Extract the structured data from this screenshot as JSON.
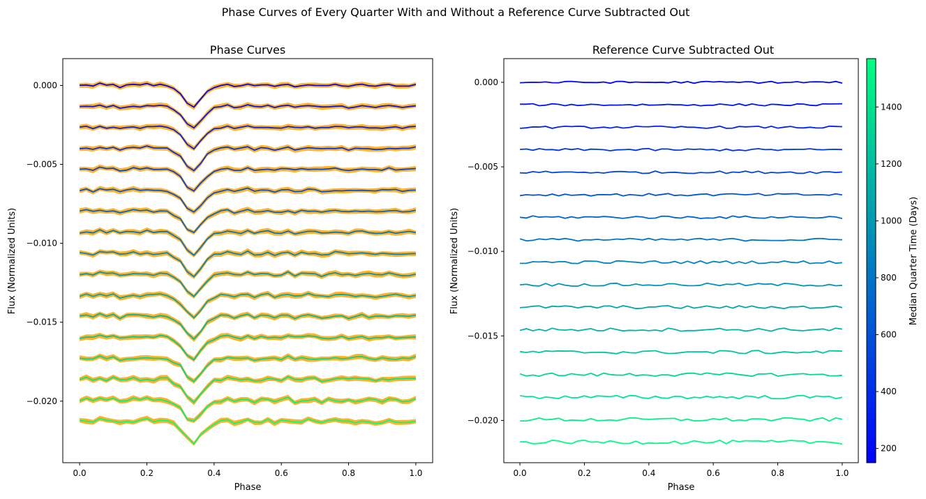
{
  "figure": {
    "suptitle": "Phase Curves of Every Quarter With and Without a Reference Curve Subtracted Out"
  },
  "colorbar": {
    "label": "Median Quarter Time (Days)",
    "range": [
      150,
      1570
    ],
    "ticks": [
      200,
      400,
      600,
      800,
      1000,
      1200,
      1400
    ],
    "colormap": [
      "#0000ff",
      "#00ff80"
    ]
  },
  "colors": {
    "envelope": "#ffa500"
  },
  "chart_data": [
    {
      "type": "line",
      "title": "Phase Curves",
      "xlabel": "Phase",
      "ylabel": "Flux (Normalized Units)",
      "xlim": [
        -0.05,
        1.05
      ],
      "ylim": [
        -0.0239,
        0.0017
      ],
      "xticks": [
        0.0,
        0.2,
        0.4,
        0.6,
        0.8,
        1.0
      ],
      "xtick_labels": [
        "0.0",
        "0.2",
        "0.4",
        "0.6",
        "0.8",
        "1.0"
      ],
      "yticks": [
        0.0,
        -0.005,
        -0.01,
        -0.015,
        -0.02
      ],
      "ytick_labels": [
        "0.000",
        "−0.005",
        "−0.010",
        "−0.015",
        "−0.020"
      ],
      "phase": [
        0.0,
        0.02,
        0.04,
        0.06,
        0.08,
        0.1,
        0.12,
        0.14,
        0.16,
        0.18,
        0.2,
        0.22,
        0.24,
        0.26,
        0.28,
        0.3,
        0.32,
        0.34,
        0.36,
        0.38,
        0.4,
        0.42,
        0.44,
        0.46,
        0.48,
        0.5,
        0.52,
        0.54,
        0.56,
        0.58,
        0.6,
        0.62,
        0.64,
        0.66,
        0.68,
        0.7,
        0.72,
        0.74,
        0.76,
        0.78,
        0.8,
        0.82,
        0.84,
        0.86,
        0.88,
        0.9,
        0.92,
        0.94,
        0.96,
        0.98,
        1.0
      ],
      "reference_shape": [
        0.0,
        5e-05,
        -5e-05,
        0.0001,
        0.0,
        5e-05,
        -0.0001,
        0.0,
        5e-05,
        0.0,
        0.0001,
        0.0,
        5e-05,
        0.0,
        -0.0002,
        -0.0005,
        -0.0011,
        -0.0014,
        -0.0009,
        -0.0004,
        -0.0001,
        0.0,
        5e-05,
        -5e-05,
        0.0,
        0.0001,
        -5e-05,
        0.0,
        5e-05,
        -5e-05,
        0.0,
        0.0001,
        -5e-05,
        0.0,
        5e-05,
        0.0,
        -5e-05,
        0.0,
        5e-05,
        0.0,
        -5e-05,
        0.0,
        5e-05,
        0.0,
        -5e-05,
        0.0,
        5e-05,
        0.0,
        -5e-05,
        0.0,
        5e-05
      ],
      "series": [
        {
          "median_time": 170,
          "offset": 0.0
        },
        {
          "median_time": 260,
          "offset": -0.00133
        },
        {
          "median_time": 350,
          "offset": -0.00266
        },
        {
          "median_time": 440,
          "offset": -0.00399
        },
        {
          "median_time": 530,
          "offset": -0.00532
        },
        {
          "median_time": 620,
          "offset": -0.00665
        },
        {
          "median_time": 710,
          "offset": -0.00798
        },
        {
          "median_time": 800,
          "offset": -0.00931
        },
        {
          "median_time": 890,
          "offset": -0.01064
        },
        {
          "median_time": 980,
          "offset": -0.01197
        },
        {
          "median_time": 1070,
          "offset": -0.0133
        },
        {
          "median_time": 1160,
          "offset": -0.01463
        },
        {
          "median_time": 1250,
          "offset": -0.01596
        },
        {
          "median_time": 1340,
          "offset": -0.01729
        },
        {
          "median_time": 1430,
          "offset": -0.01862
        },
        {
          "median_time": 1500,
          "offset": -0.01995
        },
        {
          "median_time": 1560,
          "offset": -0.02128
        }
      ]
    },
    {
      "type": "line",
      "title": "Reference Curve Subtracted Out",
      "xlabel": "Phase",
      "ylabel": "Flux (Normalized Units)",
      "xlim": [
        -0.05,
        1.05
      ],
      "ylim": [
        -0.0225,
        0.0014
      ],
      "xticks": [
        0.0,
        0.2,
        0.4,
        0.6,
        0.8,
        1.0
      ],
      "xtick_labels": [
        "0.0",
        "0.2",
        "0.4",
        "0.6",
        "0.8",
        "1.0"
      ],
      "yticks": [
        0.0,
        -0.005,
        -0.01,
        -0.015,
        -0.02
      ],
      "ytick_labels": [
        "0.000",
        "−0.005",
        "−0.010",
        "−0.015",
        "−0.020"
      ],
      "note_series": "same 17 quarters as left panel, reference shape removed"
    }
  ]
}
